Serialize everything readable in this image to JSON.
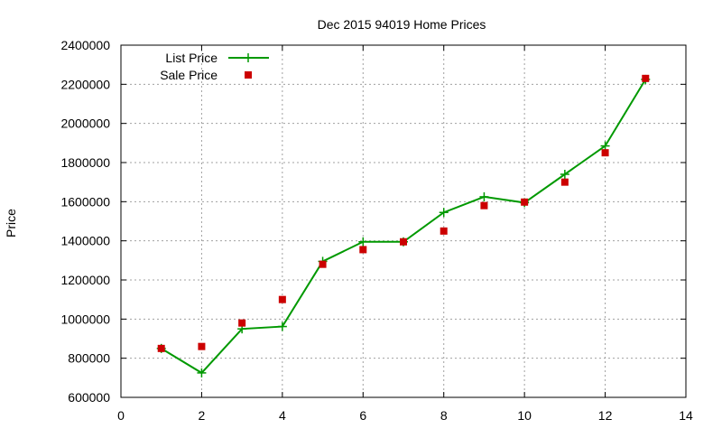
{
  "chart_data": {
    "type": "line",
    "title": "Dec 2015 94019 Home Prices",
    "xlabel": "",
    "ylabel": "Price",
    "xlim": [
      0,
      14
    ],
    "ylim": [
      600000,
      2400000
    ],
    "x_ticks": [
      0,
      2,
      4,
      6,
      8,
      10,
      12,
      14
    ],
    "y_ticks": [
      600000,
      800000,
      1000000,
      1200000,
      1400000,
      1600000,
      1800000,
      2000000,
      2200000,
      2400000
    ],
    "grid": true,
    "legend_position": "top-left",
    "series": [
      {
        "name": "List Price",
        "style": "line-with-plus-markers",
        "color": "#009900",
        "points": [
          [
            1,
            850000
          ],
          [
            2,
            725000
          ],
          [
            3,
            950000
          ],
          [
            4,
            962000
          ],
          [
            5,
            1295000
          ],
          [
            6,
            1395000
          ],
          [
            7,
            1395000
          ],
          [
            8,
            1545000
          ],
          [
            9,
            1625000
          ],
          [
            10,
            1595000
          ],
          [
            11,
            1740000
          ],
          [
            12,
            1885000
          ],
          [
            13,
            2225000
          ]
        ]
      },
      {
        "name": "Sale Price",
        "style": "square-markers",
        "color": "#cc0000",
        "points": [
          [
            1,
            850000
          ],
          [
            2,
            860000
          ],
          [
            3,
            980000
          ],
          [
            4,
            1100000
          ],
          [
            5,
            1280000
          ],
          [
            6,
            1355000
          ],
          [
            7,
            1395000
          ],
          [
            8,
            1450000
          ],
          [
            9,
            1580000
          ],
          [
            10,
            1598000
          ],
          [
            11,
            1700000
          ],
          [
            12,
            1850000
          ],
          [
            13,
            2230000
          ]
        ]
      }
    ]
  }
}
